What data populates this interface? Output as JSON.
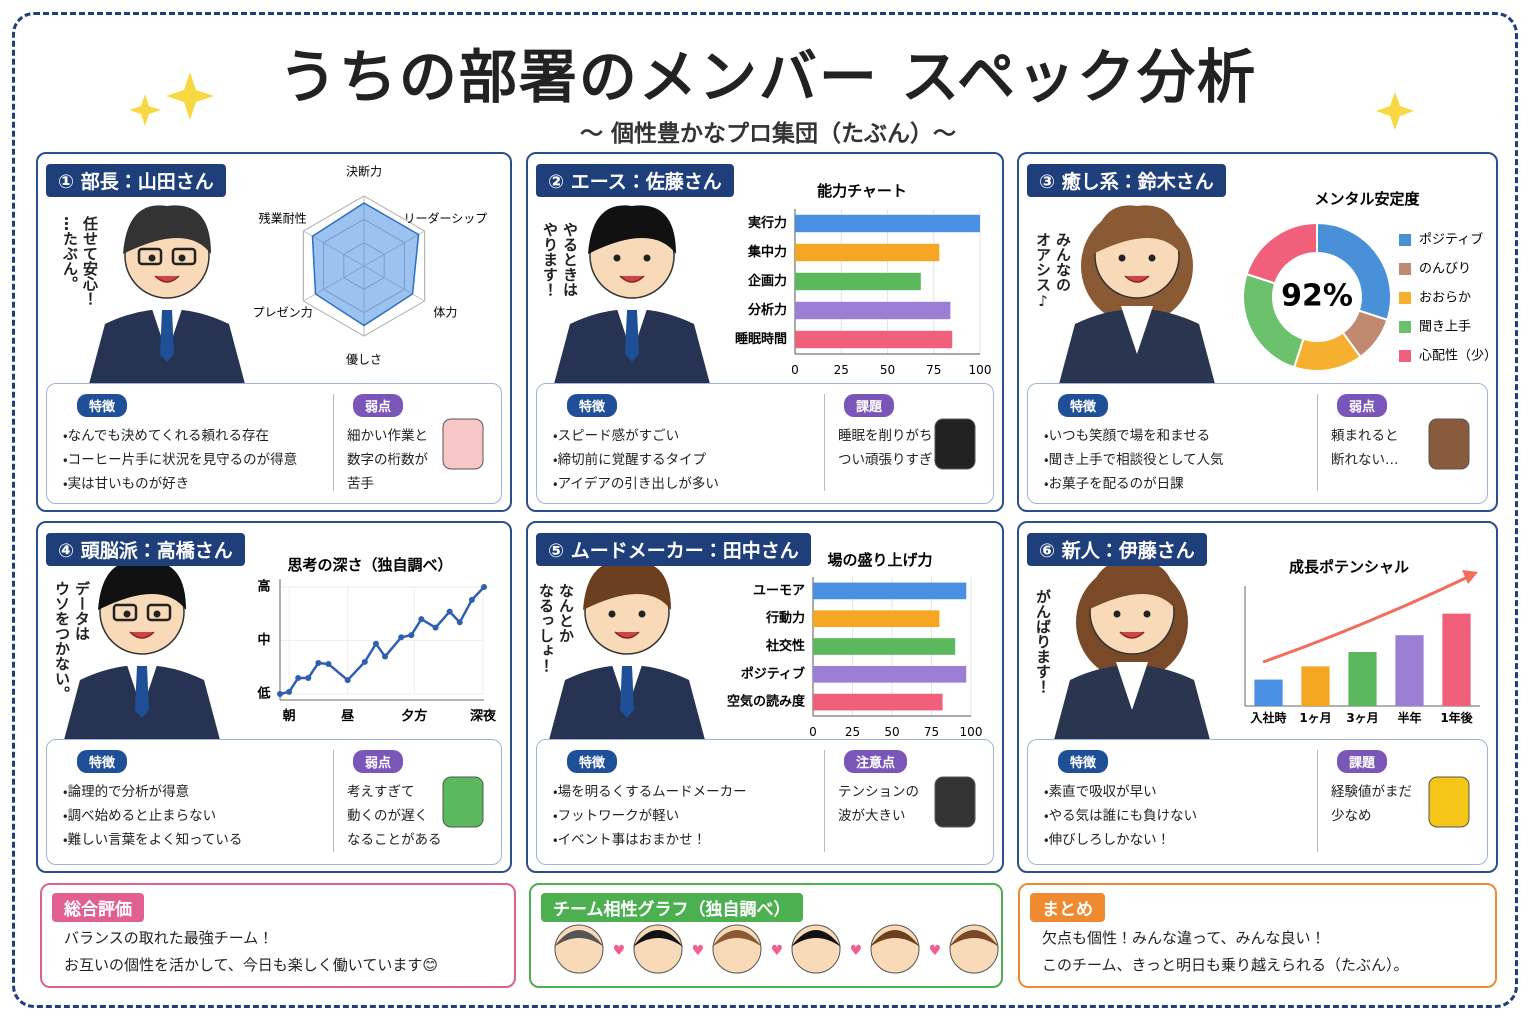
{
  "header": {
    "title": "うちの部署のメンバー スペック分析",
    "subtitle": "〜 個性豊かなプロ集団（たぶん）〜"
  },
  "cards": [
    {
      "badge": "① 部長：山田さん",
      "speech": [
        "任せて安心！",
        "…たぶん。"
      ],
      "features_label": "特徴",
      "features": [
        "・なんでも決めてくれる頼れる存在",
        "・コーヒー片手に状況を見守るのが得意",
        "・実は甘いものが好き"
      ],
      "note_label": "弱点",
      "note": [
        "細かい作業と",
        "数字の桁数が",
        "苦手"
      ],
      "chart_data": {
        "type": "radar",
        "categories": [
          "決断力",
          "リーダーシップ",
          "体力",
          "優しさ",
          "プレゼン力",
          "残業耐性"
        ],
        "values": [
          90,
          90,
          80,
          85,
          80,
          85
        ],
        "rlim": [
          0,
          100
        ],
        "color": "#4a90e2"
      }
    },
    {
      "badge": "② エース：佐藤さん",
      "speech": [
        "やるときは",
        "やります！"
      ],
      "features_label": "特徴",
      "features": [
        "・スピード感がすごい",
        "・締切前に覚醒するタイプ",
        "・アイデアの引き出しが多い"
      ],
      "note_label": "課題",
      "note": [
        "睡眠を削りがち",
        "つい頑張りすぎる"
      ],
      "chart_data": {
        "type": "bar",
        "orientation": "horizontal",
        "title": "能力チャート",
        "categories": [
          "実行力",
          "集中力",
          "企画力",
          "分析力",
          "睡眠時間"
        ],
        "values": [
          100,
          78,
          68,
          84,
          85
        ],
        "colors": [
          "#4a90e2",
          "#f5a623",
          "#5cb85c",
          "#9b7fd4",
          "#f0607a"
        ],
        "xlim": [
          0,
          100
        ],
        "xticks": [
          0,
          25,
          50,
          75,
          100
        ]
      }
    },
    {
      "badge": "③ 癒し系：鈴木さん",
      "speech": [
        "みんなの",
        "オアシス♪"
      ],
      "features_label": "特徴",
      "features": [
        "・いつも笑顔で場を和ませる",
        "・聞き上手で相談役として人気",
        "・お菓子を配るのが日課"
      ],
      "note_label": "弱点",
      "note": [
        "頼まれると",
        "断れない…"
      ],
      "chart_data": {
        "type": "pie",
        "title": "メンタル安定度",
        "center_label": "92%",
        "categories": [
          "ポジティブ",
          "のんびり",
          "おおらか",
          "聞き上手",
          "心配性（少）"
        ],
        "values": [
          30,
          10,
          15,
          25,
          20
        ],
        "colors": [
          "#4a90d9",
          "#c08a70",
          "#f5b030",
          "#6cc16c",
          "#f0607a"
        ]
      }
    },
    {
      "badge": "④ 頭脳派：高橋さん",
      "speech": [
        "データは",
        "ウソをつかない。"
      ],
      "features_label": "特徴",
      "features": [
        "・論理的で分析が得意",
        "・調べ始めると止まらない",
        "・難しい言葉をよく知っている"
      ],
      "note_label": "弱点",
      "note": [
        "考えすぎて",
        "動くのが遅く",
        "なることがある"
      ],
      "chart_data": {
        "type": "line",
        "title": "思考の深さ（独自調べ）",
        "x": [
          0,
          9,
          18,
          28,
          38,
          48,
          67,
          84,
          95,
          104,
          120,
          130,
          140,
          154,
          168,
          178,
          190,
          202
        ],
        "values": [
          0,
          2,
          15,
          15,
          29,
          28,
          13,
          30,
          47,
          35,
          53,
          55,
          70,
          62,
          77,
          67,
          88,
          100
        ],
        "color": "#2f5fb0",
        "xlim": [
          0,
          202
        ],
        "ylim": [
          0,
          100
        ],
        "xticks": [
          {
            "value": 9,
            "label": "朝"
          },
          {
            "value": 67,
            "label": "昼"
          },
          {
            "value": 133,
            "label": "夕方"
          },
          {
            "value": 201,
            "label": "深夜"
          }
        ],
        "yticks": [
          {
            "value": 0,
            "label": "低"
          },
          {
            "value": 50,
            "label": "中"
          },
          {
            "value": 100,
            "label": "高"
          }
        ]
      }
    },
    {
      "badge": "⑤ ムードメーカー：田中さん",
      "speech": [
        "なんとか",
        "なるっしょ！"
      ],
      "features_label": "特徴",
      "features": [
        "・場を明るくするムードメーカー",
        "・フットワークが軽い",
        "・イベント事はおまかせ！"
      ],
      "note_label": "注意点",
      "note": [
        "テンションの",
        "波が大きい"
      ],
      "chart_data": {
        "type": "bar",
        "orientation": "horizontal",
        "title": "場の盛り上げ力",
        "categories": [
          "ユーモア",
          "行動力",
          "社交性",
          "ポジティブ",
          "空気の読み度"
        ],
        "values": [
          97,
          80,
          90,
          97,
          82
        ],
        "colors": [
          "#4a90e2",
          "#f5a623",
          "#5cb85c",
          "#9b7fd4",
          "#f0607a"
        ],
        "xlim": [
          0,
          100
        ],
        "xticks": [
          0,
          25,
          50,
          75,
          100
        ]
      }
    },
    {
      "badge": "⑥ 新人：伊藤さん",
      "speech": [
        "がんばります！"
      ],
      "features_label": "特徴",
      "features": [
        "・素直で吸収が早い",
        "・やる気は誰にも負けない",
        "・伸びしろしかない！"
      ],
      "note_label": "課題",
      "note": [
        "経験値がまだ",
        "少なめ"
      ],
      "chart_data": {
        "type": "column",
        "title": "成長ポテンシャル",
        "categories": [
          "入社時",
          "1ヶ月",
          "3ヶ月",
          "半年",
          "1年後"
        ],
        "values": [
          22,
          33,
          45,
          59,
          77
        ],
        "colors": [
          "#4a90e2",
          "#f5a623",
          "#5cb85c",
          "#9b7fd4",
          "#f0607a"
        ],
        "ylim": [
          0,
          100
        ]
      }
    }
  ],
  "footer": {
    "summary": {
      "label": "総合評価",
      "lines": [
        "バランスの取れた最強チーム！",
        "お互いの個性を活かして、今日も楽しく働いています😊"
      ]
    },
    "team": {
      "label": "チーム相性グラフ（独自調べ）"
    },
    "conclusion": {
      "label": "まとめ",
      "lines": [
        "欠点も個性！みんな違って、みんな良い！",
        "このチーム、きっと明日も乗り越えられる（たぶん）。"
      ]
    }
  }
}
